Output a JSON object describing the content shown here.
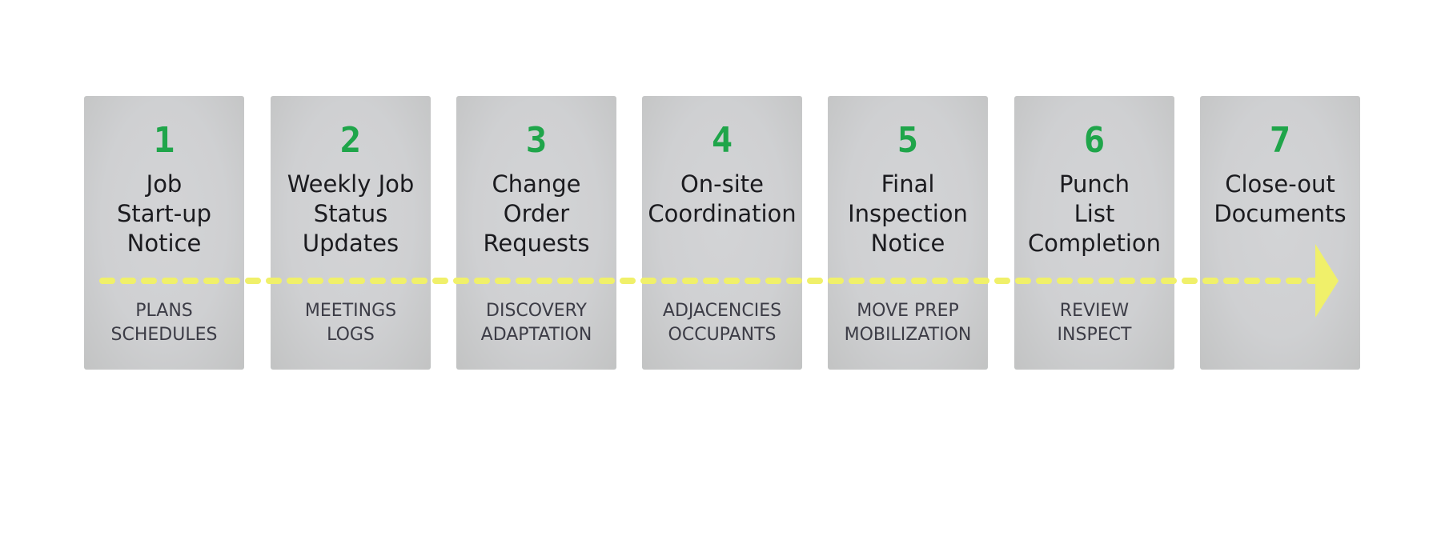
{
  "steps": [
    {
      "number": "1",
      "title": [
        "Job",
        "Start-up",
        "Notice"
      ],
      "tags": [
        "PLANS",
        "SCHEDULES"
      ]
    },
    {
      "number": "2",
      "title": [
        "Weekly Job",
        "Status",
        "Updates"
      ],
      "tags": [
        "MEETINGS",
        "LOGS"
      ]
    },
    {
      "number": "3",
      "title": [
        "Change",
        "Order",
        "Requests"
      ],
      "tags": [
        "DISCOVERY",
        "ADAPTATION"
      ]
    },
    {
      "number": "4",
      "title": [
        "On-site",
        "Coordination"
      ],
      "tags": [
        "ADJACENCIES",
        "OCCUPANTS"
      ]
    },
    {
      "number": "5",
      "title": [
        "Final",
        "Inspection",
        "Notice"
      ],
      "tags": [
        "MOVE PREP",
        "MOBILIZATION"
      ]
    },
    {
      "number": "6",
      "title": [
        "Punch",
        "List",
        "Completion"
      ],
      "tags": [
        "REVIEW",
        "INSPECT"
      ]
    },
    {
      "number": "7",
      "title": [
        "Close-out",
        "Documents"
      ],
      "tags": []
    }
  ],
  "colors": {
    "number": "#1fa54a",
    "flow_line": "#f0f06a",
    "card": "#cfd0d2"
  }
}
